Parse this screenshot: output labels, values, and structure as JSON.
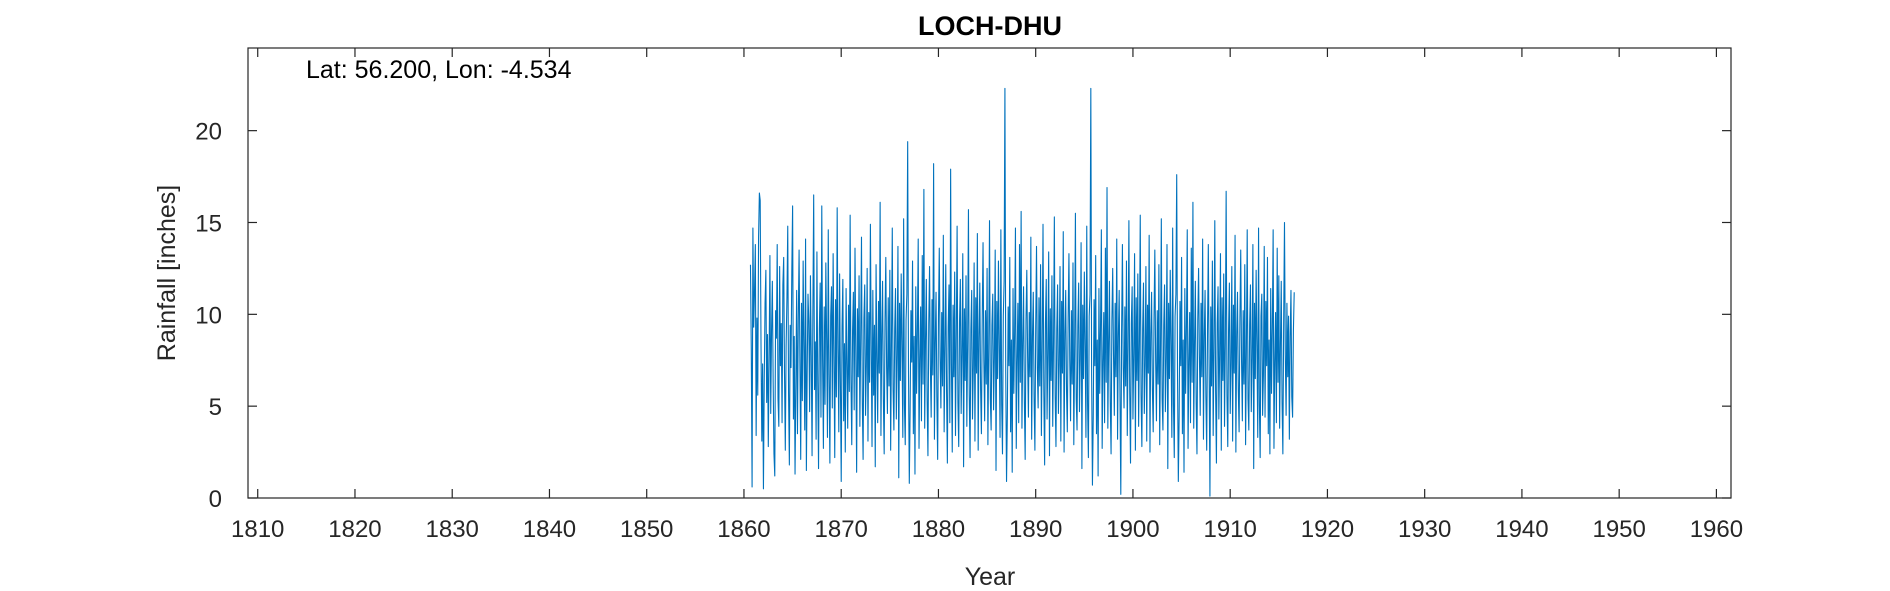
{
  "chart_data": {
    "type": "line",
    "title": "LOCH-DHU",
    "annotation": "Lat: 56.200, Lon: -4.534",
    "xlabel": "Year",
    "ylabel": "Rainfall [inches]",
    "xlim": [
      1809,
      1961.5
    ],
    "ylim": [
      0,
      24.5
    ],
    "xticks": [
      1810,
      1820,
      1830,
      1840,
      1850,
      1860,
      1870,
      1880,
      1890,
      1900,
      1910,
      1920,
      1930,
      1940,
      1950,
      1960
    ],
    "yticks": [
      0,
      5,
      10,
      15,
      20
    ],
    "grid": false,
    "series": [
      {
        "color": "#0072BD",
        "x_start": 1860.67,
        "x_step": 0.08333,
        "values": [
          12.7,
          8.1,
          0.6,
          14.7,
          9.3,
          11.2,
          13.8,
          3.4,
          9.8,
          5.6,
          14.2,
          16.6,
          16.2,
          8.4,
          3.1,
          7.3,
          0.5,
          6.5,
          10.6,
          12.4,
          5.2,
          8.9,
          2.8,
          7.6,
          13.2,
          4.6,
          9.1,
          11.8,
          6.3,
          2.4,
          1.2,
          10.2,
          8.7,
          13.8,
          5.4,
          3.9,
          12.6,
          7.2,
          9.5,
          4.1,
          11.6,
          13.1,
          6.8,
          2.6,
          8.3,
          10.9,
          14.8,
          5.7,
          1.8,
          9.4,
          7.1,
          12.3,
          15.9,
          4.3,
          8.8,
          1.3,
          6.1,
          11.3,
          3.5,
          9.7,
          13.5,
          7.4,
          2.1,
          10.6,
          5.3,
          12.9,
          8.2,
          3.7,
          14.1,
          1.5,
          6.9,
          11.1,
          9.6,
          4.7,
          12.1,
          7.8,
          2.3,
          10.1,
          16.5,
          5.9,
          8.5,
          3.2,
          13.4,
          6.4,
          1.6,
          9.2,
          11.7,
          4.4,
          15.9,
          7.5,
          2.7,
          10.4,
          5.1,
          12.8,
          8.6,
          3.3,
          14.6,
          6.7,
          1.9,
          9.9,
          11.5,
          4.9,
          13.3,
          7.7,
          2.2,
          10.8,
          5.5,
          15.8,
          8.1,
          3.6,
          12.2,
          6.2,
          0.9,
          9.3,
          11.9,
          4.2,
          8.4,
          2.5,
          11.4,
          7.3,
          3.8,
          10.5,
          5.8,
          15.4,
          6.5,
          2.9,
          9.1,
          11.2,
          4.8,
          13.6,
          7.9,
          1.4,
          10.3,
          6.6,
          12.1,
          3.9,
          8.7,
          14.2,
          5.2,
          2.1,
          9.8,
          11.6,
          4.5,
          7.2,
          12.5,
          3.1,
          10.1,
          6.3,
          14.9,
          8.3,
          2.8,
          11.3,
          5.6,
          9.4,
          1.7,
          12.7,
          7.6,
          4.1,
          10.7,
          6.8,
          16.1,
          3.4,
          8.9,
          11.8,
          5.4,
          2.4,
          9.6,
          13.1,
          7.1,
          4.6,
          10.9,
          6.1,
          12.4,
          2.6,
          8.5,
          14.7,
          5.9,
          3.7,
          9.2,
          11.4,
          4.3,
          7.8,
          13.7,
          1.1,
          10.6,
          6.4,
          12.2,
          8.2,
          3.3,
          15.2,
          5.1,
          2.9,
          9.7,
          11.1,
          19.4,
          6.9,
          0.8,
          4.7,
          10.2,
          7.4,
          12.9,
          3.5,
          8.8,
          1.3,
          11.5,
          5.7,
          9.1,
          14.1,
          2.7,
          7.5,
          10.4,
          4.2,
          13.2,
          6.2,
          16.8,
          3.8,
          8.6,
          11.9,
          5.3,
          2.3,
          9.5,
          12.6,
          7.2,
          4.4,
          10.8,
          6.7,
          18.2,
          3.2,
          8.4,
          11.2,
          5.5,
          2.1,
          9.9,
          13.6,
          7.7,
          4.9,
          10.1,
          6.1,
          14.3,
          3.6,
          8.1,
          12.7,
          5.8,
          1.9,
          9.3,
          11.6,
          4.1,
          17.9,
          7.3,
          2.5,
          10.5,
          6.6,
          12.3,
          3.4,
          8.9,
          14.8,
          5.2,
          2.8,
          9.6,
          11.9,
          4.6,
          7.9,
          13.3,
          1.7,
          10.3,
          6.4,
          12.1,
          3.9,
          8.5,
          15.7,
          5.6,
          2.2,
          9.2,
          11.3,
          4.3,
          7.1,
          12.8,
          3.1,
          10.9,
          6.8,
          14.4,
          2.6,
          8.7,
          11.7,
          5.9,
          3.5,
          9.8,
          13.9,
          7.5,
          4.2,
          10.2,
          6.2,
          12.5,
          2.9,
          8.2,
          15.1,
          5.4,
          3.7,
          9.4,
          11.1,
          4.8,
          7.6,
          13.5,
          1.5,
          10.7,
          6.5,
          12.9,
          8.3,
          3.3,
          14.6,
          5.1,
          2.4,
          9.9,
          11.8,
          22.3,
          6.9,
          0.9,
          4.5,
          10.4,
          7.2,
          13.1,
          3.6,
          8.6,
          1.4,
          11.4,
          5.7,
          9.1,
          14.7,
          2.7,
          7.4,
          10.6,
          4.1,
          13.8,
          6.3,
          15.6,
          3.8,
          8.4,
          11.5,
          5.3,
          2.1,
          9.7,
          12.4,
          7.7,
          4.4,
          10.1,
          6.6,
          14.2,
          3.2,
          8.8,
          11.2,
          5.5,
          2.6,
          9.3,
          13.7,
          7.1,
          4.9,
          10.9,
          6.1,
          12.7,
          3.4,
          8.2,
          14.9,
          5.8,
          1.8,
          9.5,
          11.9,
          4.3,
          7.9,
          13.4,
          2.3,
          10.3,
          6.4,
          12.1,
          3.9,
          8.5,
          15.3,
          5.6,
          2.8,
          9.2,
          11.6,
          4.6,
          7.3,
          12.6,
          3.1,
          10.7,
          6.8,
          14.5,
          2.5,
          8.9,
          11.3,
          5.9,
          3.6,
          9.8,
          13.3,
          7.5,
          4.2,
          10.2,
          6.2,
          12.8,
          2.9,
          8.1,
          15.5,
          5.4,
          3.7,
          9.4,
          11.7,
          4.7,
          7.6,
          13.9,
          1.6,
          10.5,
          6.5,
          12.3,
          8.3,
          3.3,
          14.8,
          5.1,
          2.2,
          9.9,
          11.1,
          22.3,
          6.7,
          0.7,
          4.4,
          10.8,
          7.2,
          13.2,
          3.5,
          8.6,
          1.2,
          11.4,
          5.7,
          9.3,
          14.6,
          2.7,
          7.4,
          10.1,
          4.1,
          13.6,
          6.3,
          16.9,
          3.8,
          8.4,
          11.8,
          5.2,
          2.4,
          9.7,
          12.5,
          7.8,
          4.5,
          10.6,
          6.6,
          14.1,
          3.2,
          8.8,
          11.3,
          5.5,
          0.2,
          9.1,
          13.8,
          7.1,
          4.9,
          10.4,
          6.1,
          12.9,
          3.4,
          8.2,
          15.1,
          5.8,
          1.9,
          9.5,
          11.5,
          4.3,
          7.9,
          13.3,
          2.6,
          10.9,
          6.4,
          12.2,
          3.9,
          8.5,
          15.4,
          5.6,
          2.8,
          9.2,
          11.7,
          4.6,
          7.3,
          12.6,
          3.1,
          10.5,
          6.8,
          14.3,
          2.5,
          8.9,
          11.2,
          5.9,
          3.6,
          9.8,
          13.5,
          7.5,
          4.2,
          10.2,
          6.2,
          12.7,
          2.9,
          8.1,
          15.2,
          5.4,
          3.7,
          9.4,
          11.6,
          4.7,
          7.6,
          13.8,
          1.6,
          10.6,
          6.5,
          12.4,
          8.3,
          3.3,
          14.7,
          5.1,
          2.2,
          9.9,
          11.1,
          17.6,
          6.7,
          0.9,
          4.4,
          10.7,
          7.2,
          13.1,
          3.5,
          8.6,
          1.4,
          11.4,
          5.7,
          9.3,
          14.6,
          2.7,
          7.4,
          10.1,
          4.1,
          13.6,
          6.3,
          16.1,
          3.8,
          8.4,
          11.8,
          5.2,
          2.4,
          9.7,
          12.5,
          7.8,
          4.5,
          10.6,
          6.6,
          14.1,
          3.2,
          8.8,
          11.3,
          5.5,
          2.6,
          9.1,
          13.8,
          7.1,
          0.1,
          10.4,
          6.1,
          12.9,
          3.4,
          8.2,
          15.1,
          5.8,
          1.9,
          9.5,
          11.5,
          4.3,
          7.9,
          13.3,
          2.6,
          10.9,
          6.4,
          12.2,
          3.9,
          8.5,
          16.7,
          5.6,
          2.8,
          9.2,
          11.7,
          4.6,
          7.3,
          12.6,
          3.1,
          10.5,
          6.8,
          14.3,
          2.5,
          8.9,
          11.2,
          5.9,
          3.6,
          9.8,
          13.5,
          7.5,
          4.2,
          10.2,
          6.2,
          12.7,
          2.9,
          8.1,
          14.6,
          5.4,
          3.7,
          9.4,
          11.6,
          4.7,
          7.6,
          13.8,
          1.6,
          10.6,
          6.5,
          12.4,
          8.3,
          3.3,
          14.7,
          5.1,
          2.2,
          9.9,
          11.1,
          4.5,
          6.7,
          13.7,
          4.4,
          10.7,
          7.2,
          13.1,
          3.5,
          8.6,
          2.4,
          11.4,
          5.7,
          9.3,
          14.6,
          2.7,
          7.4,
          10.1,
          4.1,
          13.6,
          6.3,
          12.1,
          3.8,
          8.4,
          11.8,
          5.2,
          2.4,
          9.7,
          15.0,
          7.8,
          4.5,
          10.6,
          6.6,
          9.9,
          3.2,
          8.8,
          11.3,
          5.5,
          4.4,
          9.1,
          11.2
        ]
      }
    ]
  }
}
